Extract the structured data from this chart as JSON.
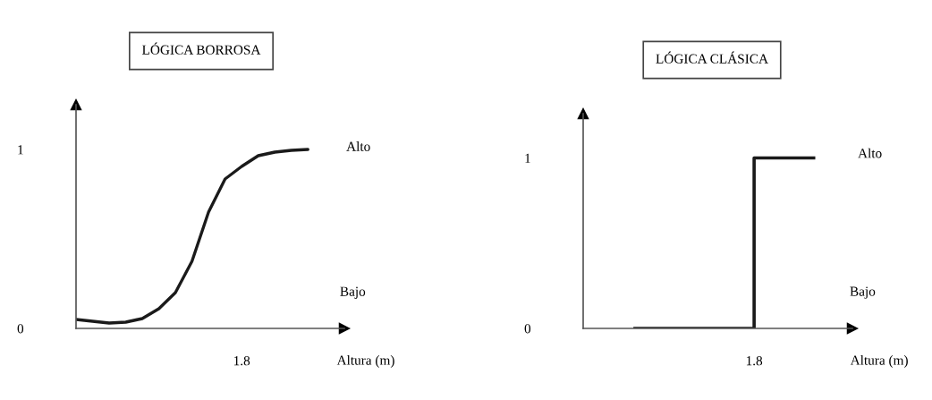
{
  "chart_data": [
    {
      "type": "line",
      "title": "LÓGICA BORROSA",
      "xlabel": "Altura (m)",
      "annotations": [
        "Alto",
        "Bajo"
      ],
      "categories": [
        null,
        null,
        null,
        null,
        null,
        null,
        null,
        null,
        null,
        null,
        "1.8",
        null,
        null,
        null,
        null,
        null,
        null
      ],
      "values": [
        0.05,
        0.04,
        0.03,
        0.035,
        0.055,
        0.11,
        0.2,
        0.375,
        0.65,
        0.835,
        0.905,
        0.965,
        0.985,
        0.995,
        1.0,
        null,
        null
      ],
      "color": "#1a1a1a",
      "ylim": [
        0,
        1.25
      ],
      "yticks": [
        0,
        1
      ]
    },
    {
      "type": "step",
      "title": "LÓGICA CLÁSICA",
      "xlabel": "Altura (m)",
      "annotations": [
        "Alto",
        "Bajo"
      ],
      "categories": [
        null,
        null,
        "1.8",
        null
      ],
      "values": [
        0,
        0,
        1,
        1
      ],
      "color": "#1a1a1a",
      "ylim": [
        0,
        1.26
      ],
      "yticks": [
        0,
        1
      ]
    }
  ]
}
